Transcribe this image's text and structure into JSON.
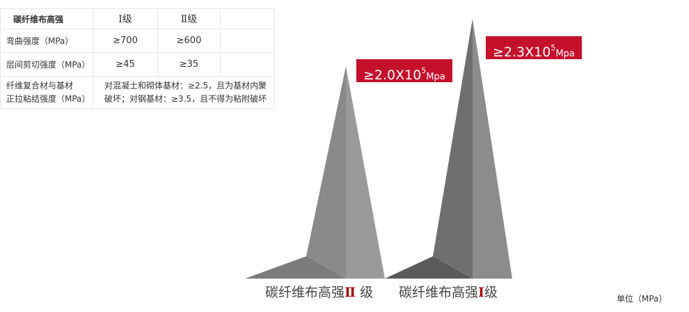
{
  "table": {
    "header": [
      "碳纤维布高强",
      "Ⅰ级",
      "Ⅱ级",
      ""
    ],
    "rows": [
      {
        "label": "弯曲强度（MPa）",
        "v1": "≥700",
        "v2": "≥600"
      },
      {
        "label": "层间剪切强度（MPa）",
        "v1": "≥45",
        "v2": "≥35"
      }
    ],
    "bond": {
      "label1": "纤维复合材与基材",
      "label2": "正拉粘结强度（MPa）",
      "text1": "对混凝土和砌体基材：≥2.5，且为基材内聚",
      "text2": "破坏；对钢基材：≥3.5，且不得为粘附破坏"
    }
  },
  "graphic": {
    "tag_grade2": {
      "base": "≥2.0X10",
      "exp": "5",
      "unit": "Mpa"
    },
    "tag_grade1": {
      "base": "≥2.3X10",
      "exp": "5",
      "unit": "Mpa"
    },
    "label_grade2": {
      "prefix": "碳纤维布高强",
      "grade": "Ⅱ",
      "suffix": " 级"
    },
    "label_grade1": {
      "prefix": "碳纤维布高强",
      "grade": "Ⅰ",
      "suffix": "级"
    },
    "unit": "单位（MPa）",
    "accent_color": "#c5102c"
  }
}
